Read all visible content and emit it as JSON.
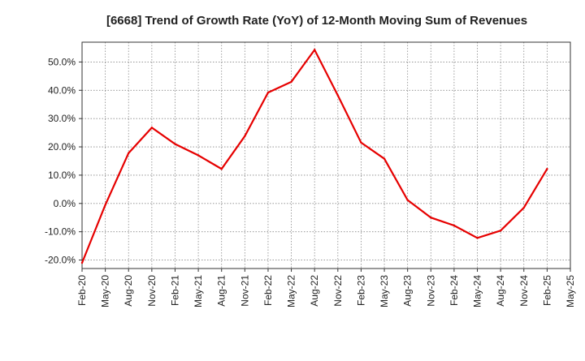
{
  "chart_data": {
    "type": "line",
    "title": "[6668]  Trend of Growth Rate (YoY) of 12-Month Moving Sum of Revenues",
    "xlabel": "",
    "ylabel": "",
    "x_ticks": [
      "Feb-20",
      "May-20",
      "Aug-20",
      "Nov-20",
      "Feb-21",
      "May-21",
      "Aug-21",
      "Nov-21",
      "Feb-22",
      "May-22",
      "Aug-22",
      "Nov-22",
      "Feb-23",
      "May-23",
      "Aug-23",
      "Nov-23",
      "Feb-24",
      "May-24",
      "Aug-24",
      "Nov-24",
      "Feb-25",
      "May-25"
    ],
    "y_ticks": [
      -20,
      -10,
      0,
      10,
      20,
      30,
      40,
      50
    ],
    "y_tick_labels": [
      "-20.0%",
      "-10.0%",
      "0.0%",
      "10.0%",
      "20.0%",
      "30.0%",
      "40.0%",
      "50.0%"
    ],
    "ylim": [
      -23,
      57
    ],
    "grid": true,
    "series": [
      {
        "color": "#e60000",
        "x": [
          "Feb-20",
          "May-20",
          "Aug-20",
          "Nov-20",
          "Feb-21",
          "May-21",
          "Aug-21",
          "Nov-21",
          "Feb-22",
          "May-22",
          "Aug-22",
          "Nov-22",
          "Feb-23",
          "May-23",
          "Aug-23",
          "Nov-23",
          "Feb-24",
          "May-24",
          "Aug-24",
          "Nov-24",
          "Feb-25"
        ],
        "values": [
          -21.0,
          -0.5,
          17.8,
          26.8,
          21.0,
          17.0,
          12.2,
          23.8,
          39.2,
          43.0,
          54.3,
          38.2,
          21.5,
          15.8,
          1.2,
          -5.0,
          -7.8,
          -12.2,
          -9.6,
          -1.5,
          12.2
        ]
      }
    ]
  }
}
